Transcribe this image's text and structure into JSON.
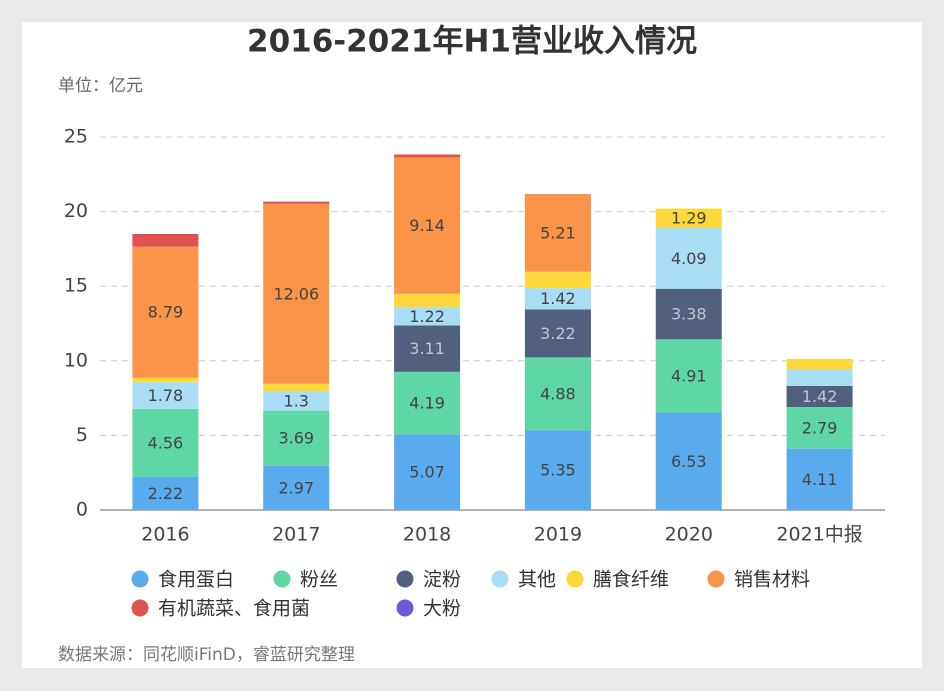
{
  "chart_data": {
    "type": "stacked_bar",
    "title": "2016-2021年H1营业收入情况",
    "unit_label": "单位：亿元",
    "source": "数据来源：同花顺iFinD，睿蓝研究整理",
    "categories": [
      "2016",
      "2017",
      "2018",
      "2019",
      "2020",
      "2021中报"
    ],
    "ylim": [
      0,
      25
    ],
    "yticks": [
      0,
      5,
      10,
      15,
      20,
      25
    ],
    "grid": true,
    "legend": "bottom",
    "series": [
      {
        "name": "食用蛋白",
        "color": "#5aabee",
        "values": [
          2.22,
          2.97,
          5.07,
          5.35,
          6.53,
          4.11
        ]
      },
      {
        "name": "粉丝",
        "color": "#5fd6a6",
        "values": [
          4.56,
          3.69,
          4.19,
          4.88,
          4.91,
          2.79
        ]
      },
      {
        "name": "淀粉",
        "color": "#52607f",
        "values": [
          0,
          0,
          3.11,
          3.22,
          3.38,
          1.42
        ]
      },
      {
        "name": "其他",
        "color": "#a8ddf5",
        "values": [
          1.78,
          1.3,
          1.22,
          1.42,
          4.09,
          1.1
        ]
      },
      {
        "name": "膳食纤维",
        "color": "#fcd83a",
        "values": [
          0.3,
          0.5,
          0.9,
          1.1,
          1.29,
          0.7
        ]
      },
      {
        "name": "销售材料",
        "color": "#f99448",
        "values": [
          8.79,
          12.06,
          9.14,
          5.21,
          0,
          0
        ]
      },
      {
        "name": "有机蔬菜、食用菌",
        "color": "#e05252",
        "values": [
          0.85,
          0.15,
          0.2,
          0,
          0,
          0
        ]
      },
      {
        "name": "大粉",
        "color": "#6b5ad9",
        "values": [
          0,
          0,
          0,
          0,
          0,
          0
        ]
      }
    ]
  }
}
